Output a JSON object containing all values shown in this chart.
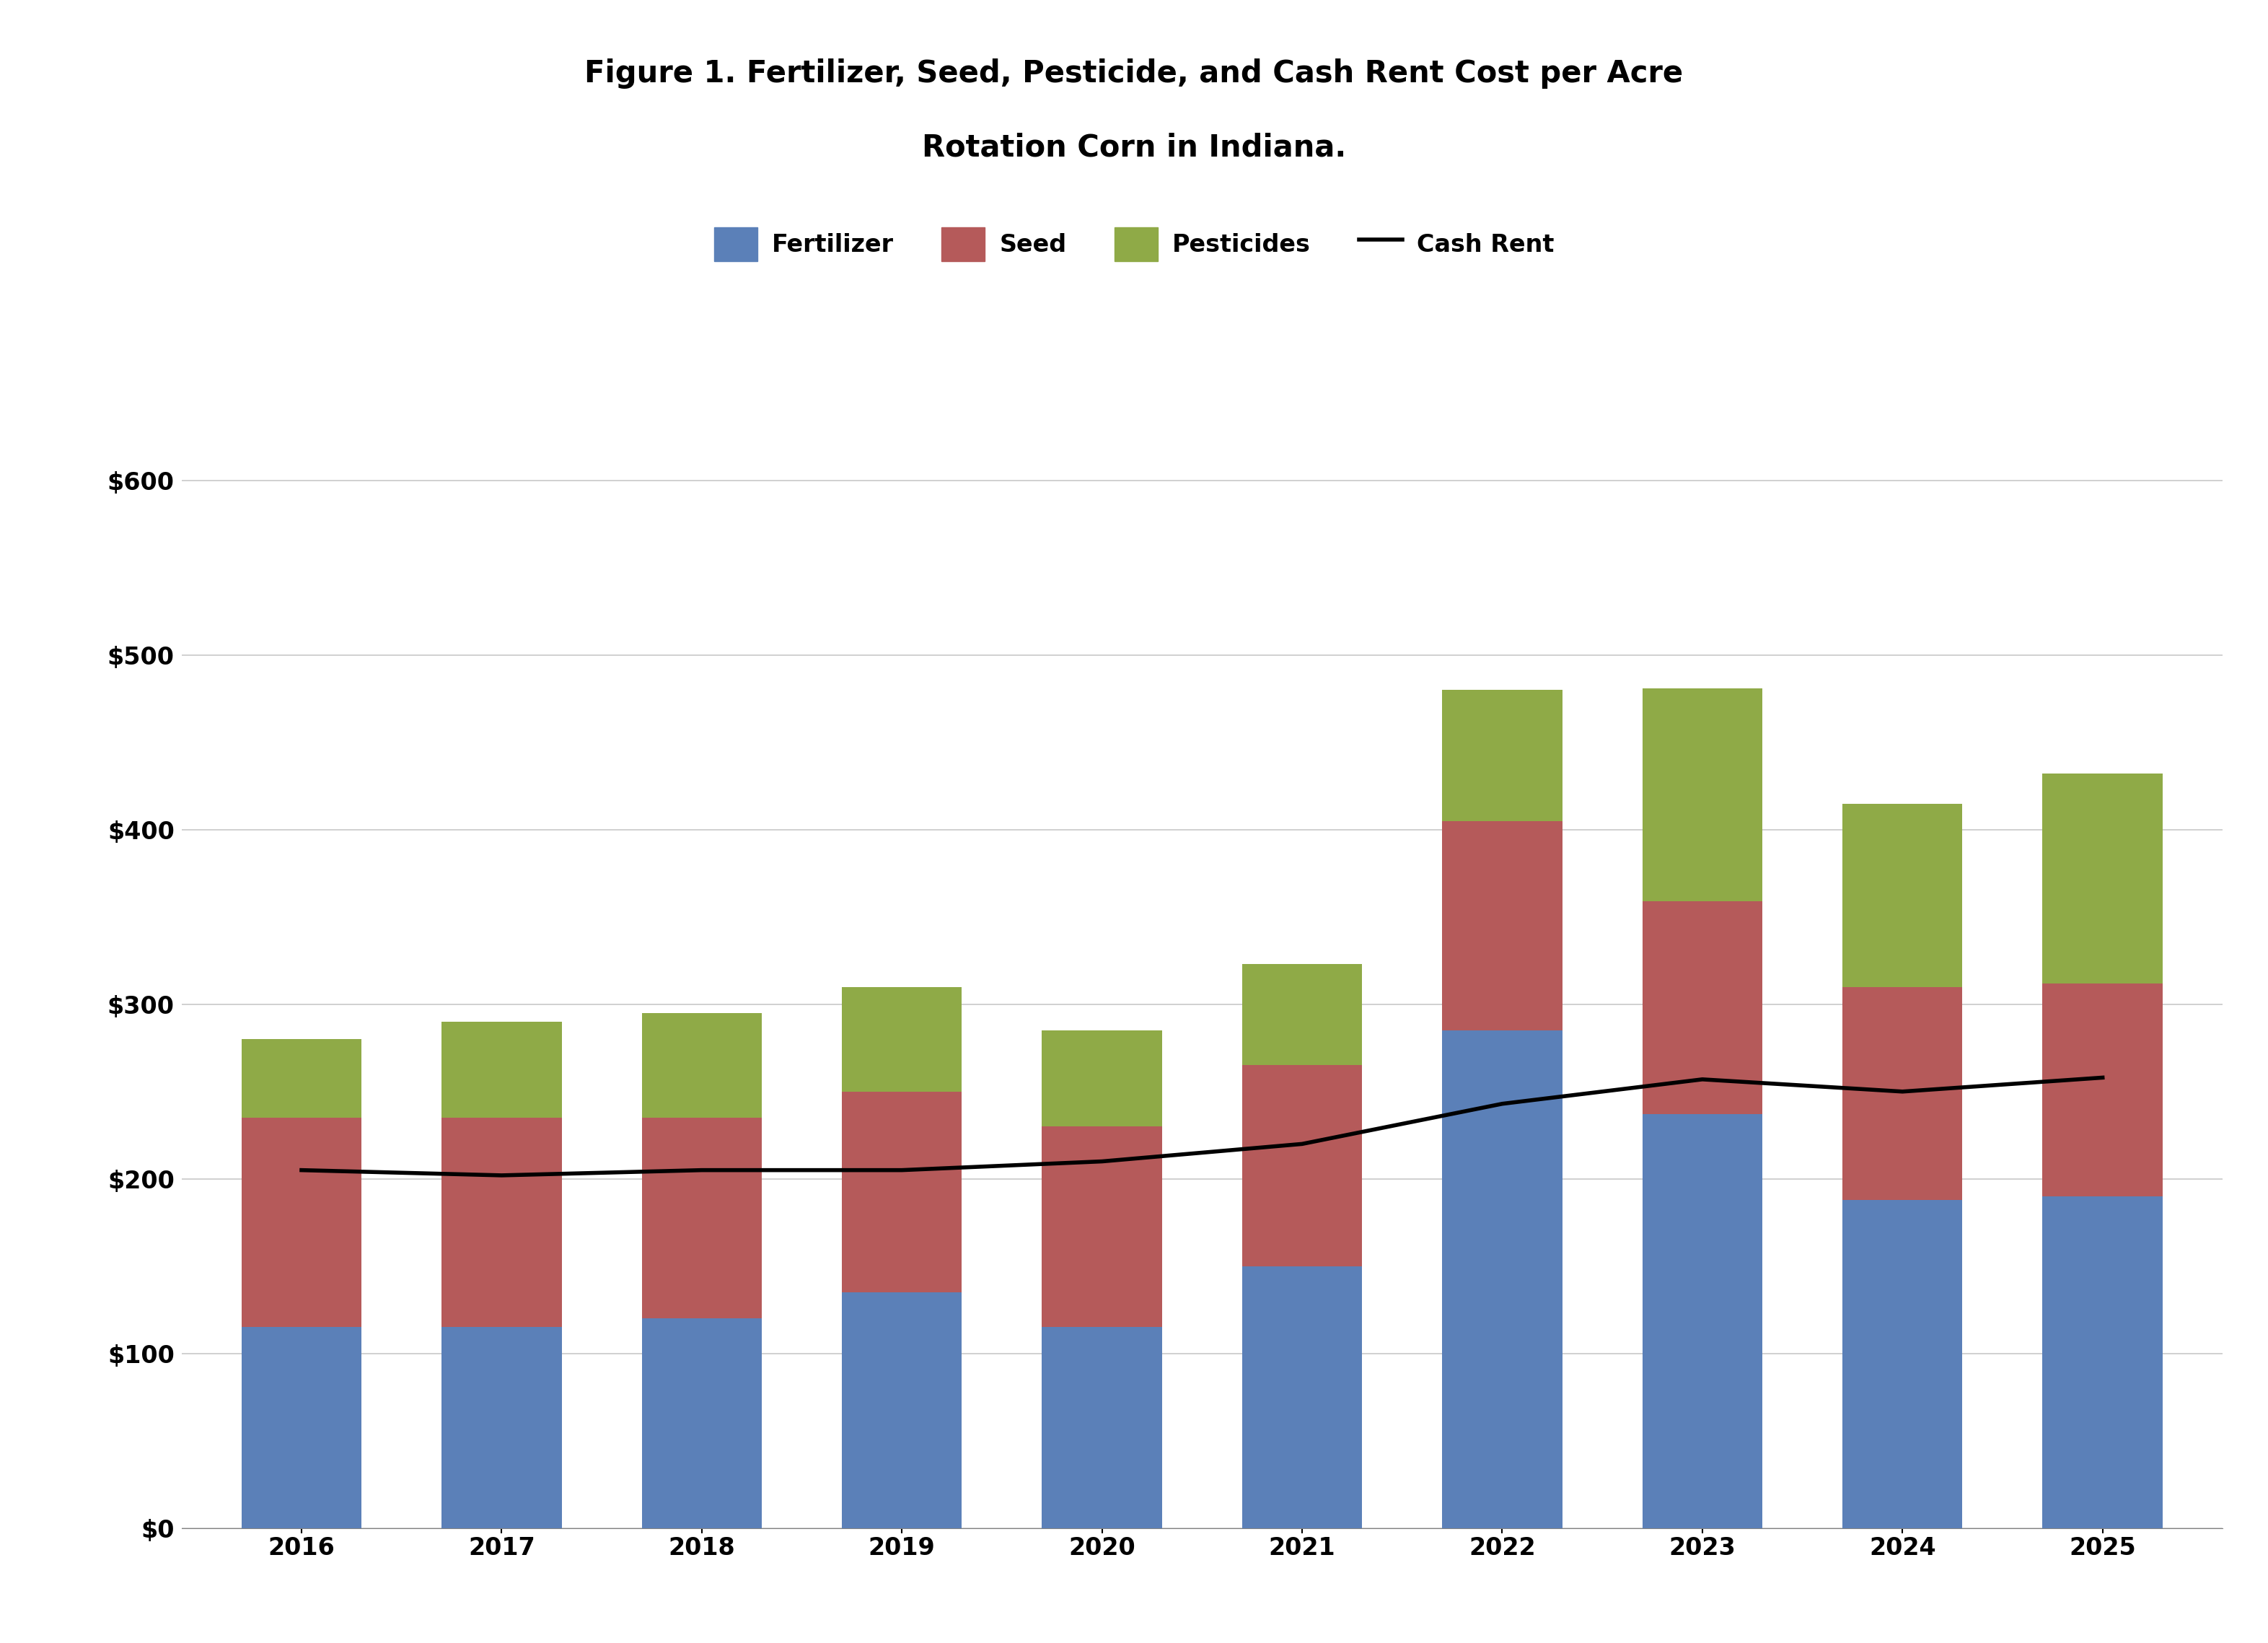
{
  "years": [
    2016,
    2017,
    2018,
    2019,
    2020,
    2021,
    2022,
    2023,
    2024,
    2025
  ],
  "fertilizer": [
    115,
    115,
    120,
    135,
    115,
    150,
    285,
    237,
    188,
    190
  ],
  "seed": [
    120,
    120,
    115,
    115,
    115,
    115,
    120,
    122,
    122,
    122
  ],
  "pesticides": [
    45,
    55,
    60,
    60,
    55,
    58,
    75,
    122,
    105,
    120
  ],
  "cash_rent": [
    205,
    202,
    205,
    205,
    210,
    220,
    243,
    257,
    250,
    258
  ],
  "fertilizer_color": "#5b80b8",
  "seed_color": "#b55a5a",
  "pesticides_color": "#8faa47",
  "cash_rent_color": "#000000",
  "title_line1": "Figure 1. Fertilizer, Seed, Pesticide, and Cash Rent Cost per Acre",
  "title_line2": "Rotation Corn in Indiana.",
  "ylim": [
    0,
    640
  ],
  "yticks": [
    0,
    100,
    200,
    300,
    400,
    500,
    600
  ],
  "background_color": "#ffffff",
  "title_fontsize": 30,
  "legend_fontsize": 24,
  "tick_fontsize": 24
}
